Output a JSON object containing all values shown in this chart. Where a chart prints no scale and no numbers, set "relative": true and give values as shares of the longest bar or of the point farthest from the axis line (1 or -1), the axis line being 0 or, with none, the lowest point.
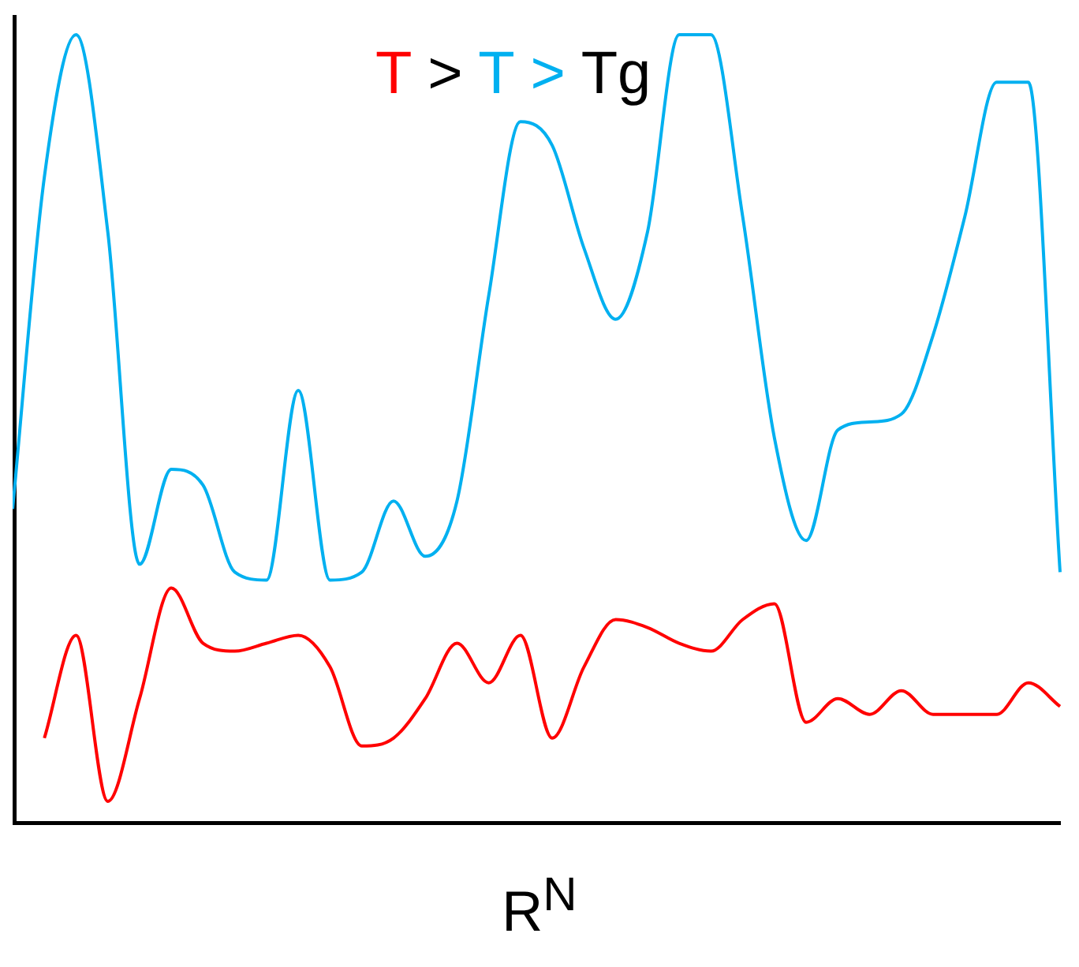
{
  "chart_data": {
    "type": "line",
    "relative": true,
    "title": "T > T > Tg",
    "xlabel": "R$^{N}$",
    "grid": false,
    "legend": false,
    "marker": "none",
    "line_style": "solid",
    "tick_labels": false,
    "categories": [
      null,
      null,
      null,
      null,
      null,
      null,
      null,
      null,
      null,
      null,
      null,
      null,
      null,
      null,
      null,
      null,
      null,
      null,
      null,
      null,
      null,
      null,
      null,
      null,
      null,
      null,
      null,
      null,
      null,
      null,
      null,
      null,
      null,
      null
    ],
    "series": [
      {
        "color": "#00b0f0",
        "values": [
          0.4,
          0.82,
          1,
          0.75,
          0.33,
          0.45,
          0.43,
          0.32,
          0.31,
          0.55,
          0.31,
          0.32,
          0.41,
          0.34,
          0.41,
          0.67,
          0.89,
          0.86,
          0.73,
          0.64,
          0.75,
          1,
          1,
          0.77,
          0.49,
          0.36,
          0.5,
          0.51,
          0.52,
          0.62,
          0.77,
          0.94,
          0.94,
          0.32
        ]
      },
      {
        "color": "#ff0000",
        "values": [
          null,
          0.11,
          0.24,
          0.03,
          0.16,
          0.3,
          0.23,
          0.22,
          0.23,
          0.24,
          0.2,
          0.1,
          0.11,
          0.16,
          0.23,
          0.18,
          0.24,
          0.11,
          0.2,
          0.26,
          0.25,
          0.23,
          0.22,
          0.26,
          0.28,
          0.13,
          0.16,
          0.14,
          0.17,
          0.14,
          0.14,
          0.14,
          0.18,
          0.15
        ]
      }
    ]
  }
}
